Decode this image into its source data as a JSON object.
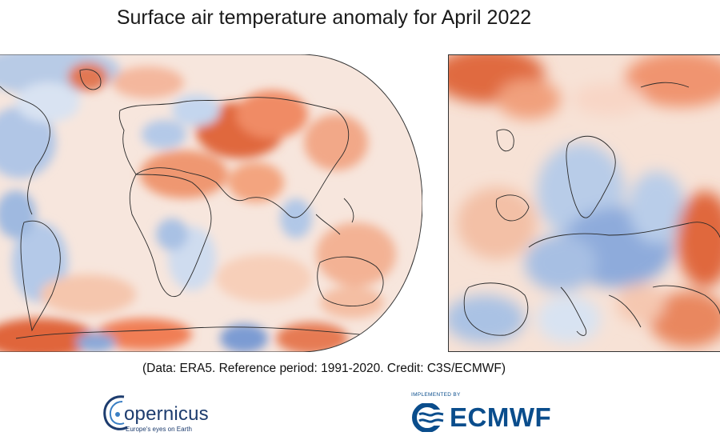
{
  "title": "Surface air temperature anomaly for April 2022",
  "credit": "(Data: ERA5.  Reference period: 1991-2020.  Credit: C3S/ECMWF)",
  "logos": {
    "copernicus": {
      "word": "opernicus",
      "tagline": "Europe's eyes on Earth"
    },
    "ecmwf": {
      "word": "ECMWF",
      "implemented_by": "IMPLEMENTED BY"
    }
  },
  "colors": {
    "warm_strong": "#d9532b",
    "warm_medium": "#f0a07f",
    "warm_light": "#f8d5c3",
    "neutral": "#f6efec",
    "cool_light": "#d6e2f1",
    "cool_medium": "#9fbbe0",
    "cool_strong": "#6f93cf",
    "brand_blue": "#0a4d8c"
  }
}
